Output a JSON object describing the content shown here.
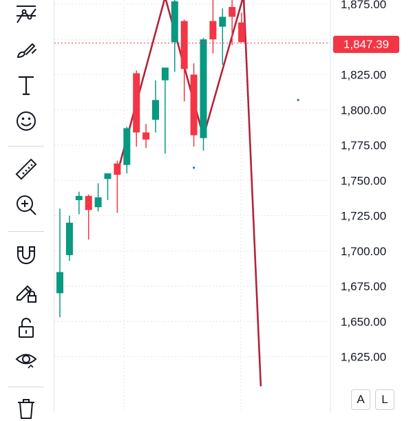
{
  "toolbar": {
    "tools": [
      {
        "name": "trend-lines-tool",
        "icon": "trend-lines-icon"
      },
      {
        "name": "brush-tool",
        "icon": "brush-icon"
      },
      {
        "name": "text-tool",
        "icon": "text-icon",
        "glyph": "T"
      },
      {
        "name": "emoji-tool",
        "icon": "smiley-icon"
      },
      {
        "name": "ruler-tool",
        "icon": "ruler-icon"
      },
      {
        "name": "zoom-tool",
        "icon": "zoom-in-icon"
      },
      {
        "name": "magnet-tool",
        "icon": "magnet-icon"
      },
      {
        "name": "lock-drawings-tool",
        "icon": "pencil-lock-icon"
      },
      {
        "name": "lock-tool",
        "icon": "unlock-icon"
      },
      {
        "name": "hide-drawings-tool",
        "icon": "eye-icon"
      },
      {
        "name": "delete-tool",
        "icon": "trash-icon"
      }
    ]
  },
  "price_scale": {
    "current_price_label": "1,847.39",
    "current_price_color": "#f23645",
    "auto_label": "A",
    "log_label": "L"
  },
  "chart_data": {
    "type": "candlestick",
    "up_color": "#089981",
    "down_color": "#f23645",
    "current_price": 1847.39,
    "y_ticks": [
      "1,875.00",
      "1,850.00",
      "1,825.00",
      "1,800.00",
      "1,775.00",
      "1,750.00",
      "1,725.00",
      "1,700.00",
      "1,675.00",
      "1,650.00",
      "1,625.00"
    ],
    "ylim": [
      1605,
      1880
    ],
    "candles": [
      {
        "o": 1670,
        "h": 1730,
        "l": 1653,
        "c": 1685
      },
      {
        "o": 1697,
        "h": 1725,
        "l": 1693,
        "c": 1720
      },
      {
        "o": 1736,
        "h": 1742,
        "l": 1726,
        "c": 1739
      },
      {
        "o": 1739,
        "h": 1740,
        "l": 1708,
        "c": 1729
      },
      {
        "o": 1731,
        "h": 1748,
        "l": 1728,
        "c": 1738
      },
      {
        "o": 1751,
        "h": 1755,
        "l": 1736,
        "c": 1755
      },
      {
        "o": 1762,
        "h": 1764,
        "l": 1727,
        "c": 1754
      },
      {
        "o": 1761,
        "h": 1788,
        "l": 1755,
        "c": 1787
      },
      {
        "o": 1826,
        "h": 1828,
        "l": 1774,
        "c": 1784
      },
      {
        "o": 1784,
        "h": 1790,
        "l": 1773,
        "c": 1779
      },
      {
        "o": 1793,
        "h": 1821,
        "l": 1784,
        "c": 1807
      },
      {
        "o": 1821,
        "h": 1829,
        "l": 1769,
        "c": 1830
      },
      {
        "o": 1848,
        "h": 1878,
        "l": 1827,
        "c": 1877
      },
      {
        "o": 1863,
        "h": 1864,
        "l": 1806,
        "c": 1829
      },
      {
        "o": 1825,
        "h": 1833,
        "l": 1774,
        "c": 1782
      },
      {
        "o": 1780,
        "h": 1851,
        "l": 1771,
        "c": 1850
      },
      {
        "o": 1863,
        "h": 1878,
        "l": 1840,
        "c": 1850
      },
      {
        "o": 1859,
        "h": 1872,
        "l": 1832,
        "c": 1866
      },
      {
        "o": 1873,
        "h": 1880,
        "l": 1846,
        "c": 1866
      },
      {
        "o": 1862,
        "h": 1869,
        "l": 1848,
        "c": 1848
      }
    ],
    "zigzag_line": [
      {
        "candle": 6.2,
        "price": 1760
      },
      {
        "candle": 11.0,
        "price": 1880
      },
      {
        "candle": 15.0,
        "price": 1781
      },
      {
        "candle": 19.2,
        "price": 1881
      },
      {
        "candle": 21.0,
        "price": 1604
      }
    ],
    "zigzag_color": "#b2223a",
    "dots": [
      {
        "candle": 14.0,
        "price": 1759
      },
      {
        "candle": 24.9,
        "price": 1807
      }
    ],
    "grid": true
  }
}
